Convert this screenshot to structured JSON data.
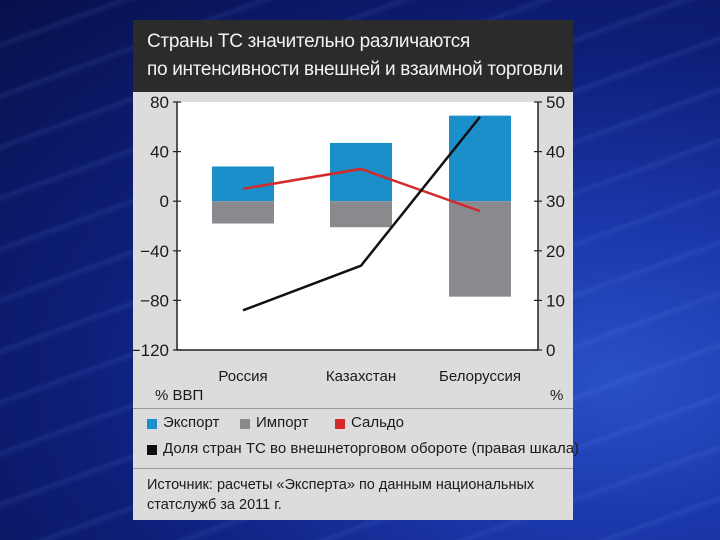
{
  "header": {
    "line1": "Страны ТС значительно различаются",
    "line2": "по интенсивности внешней и взаимной торговли"
  },
  "axis": {
    "left_unit": "% ВВП",
    "right_unit": "%"
  },
  "legend": {
    "export": "Экспорт",
    "import": "Импорт",
    "saldo": "Сальдо",
    "share": "Доля стран ТС во внешнеторговом обороте (правая шкала)"
  },
  "source": {
    "line1": "Источник: расчеты «Эксперта» по данным национальных",
    "line2": "статслужб за 2011 г."
  },
  "colors": {
    "export": "#1a8fca",
    "import": "#8a8a8e",
    "saldo": "#d42a2a",
    "share": "#111111"
  },
  "chart_data": {
    "type": "bar",
    "categories": [
      "Россия",
      "Казахстан",
      "Белоруссия"
    ],
    "left_axis": {
      "ylim": [
        -120,
        80
      ],
      "ticks": [
        80,
        40,
        0,
        -40,
        -80,
        -120
      ],
      "tick_labels": [
        "80",
        "40",
        "0",
        "−40",
        "−80",
        "−120"
      ]
    },
    "right_axis": {
      "ylim": [
        0,
        50
      ],
      "ticks": [
        50,
        40,
        30,
        20,
        10,
        0
      ],
      "tick_labels": [
        "50",
        "40",
        "30",
        "20",
        "10",
        "0"
      ]
    },
    "series": [
      {
        "name": "Экспорт",
        "kind": "bar",
        "axis": "left",
        "values": [
          28,
          47,
          69
        ]
      },
      {
        "name": "Импорт",
        "kind": "bar",
        "axis": "left",
        "values": [
          -18,
          -21,
          -77
        ]
      },
      {
        "name": "Сальдо",
        "kind": "line",
        "axis": "left",
        "values": [
          10,
          26,
          -8
        ]
      },
      {
        "name": "Доля стран ТС во внешнеторговом обороте (правая шкала)",
        "kind": "line",
        "axis": "right",
        "values": [
          8,
          17,
          47
        ]
      }
    ],
    "grid": false,
    "legend_position": "bottom"
  }
}
